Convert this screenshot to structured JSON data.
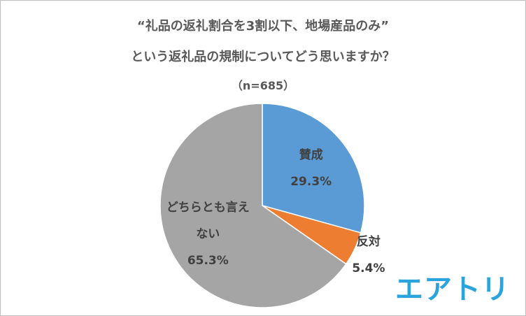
{
  "chart_data": {
    "type": "pie",
    "title": [
      "“礼品の返礼割合を3割以下、地場産品のみ”",
      "という返礼品の規制についてどう思いますか？"
    ],
    "subtitle": "（n=685）",
    "categories": [
      "賛成",
      "反対",
      "どちらとも言えない"
    ],
    "values": [
      29.3,
      5.4,
      65.3
    ],
    "value_labels": [
      "29.3%",
      "5.4%",
      "65.3%"
    ],
    "colors": [
      "#5b9bd5",
      "#ed7d31",
      "#a5a5a5"
    ]
  },
  "logo": "エアトリ"
}
